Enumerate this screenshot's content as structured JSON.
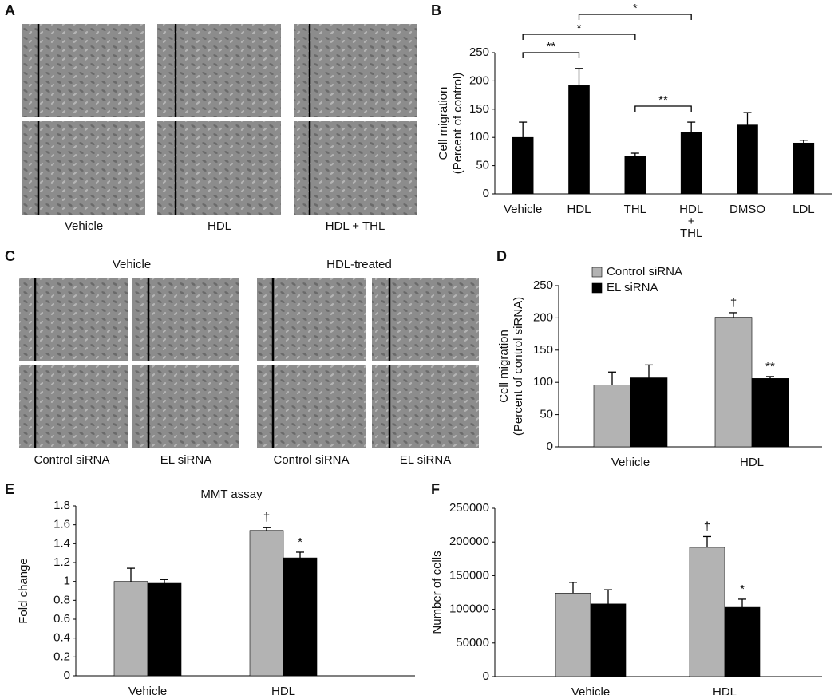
{
  "panels": {
    "letters": [
      "A",
      "B",
      "C",
      "D",
      "E",
      "F"
    ],
    "a": {
      "captions": [
        "Vehicle",
        "HDL",
        "HDL + THL"
      ]
    },
    "c": {
      "groups": [
        "Vehicle",
        "HDL-treated"
      ],
      "captions": [
        "Control siRNA",
        "EL siRNA",
        "Control siRNA",
        "EL siRNA"
      ]
    }
  },
  "chart_data": [
    {
      "type": "bar",
      "ylabel": [
        "Cell migration",
        "(Percent of control)"
      ],
      "categories": [
        "Vehicle",
        "HDL",
        "THL",
        "HDL + THL",
        "DMSO",
        "LDL"
      ],
      "values": [
        100,
        192,
        67,
        109,
        122,
        90
      ],
      "errors": [
        27,
        30,
        5,
        18,
        22,
        5
      ],
      "color": "#000000",
      "ylim": [
        0,
        250
      ],
      "yticks": [
        0,
        50,
        100,
        150,
        200,
        250
      ],
      "significance": [
        {
          "between": [
            "Vehicle",
            "HDL"
          ],
          "label": "**"
        },
        {
          "between": [
            "Vehicle",
            "THL"
          ],
          "label": "*"
        },
        {
          "between": [
            "HDL",
            "HDL + THL"
          ],
          "label": "*"
        },
        {
          "between": [
            "THL",
            "HDL + THL"
          ],
          "label": "**"
        }
      ]
    },
    {
      "type": "bar",
      "ylabel": [
        "Cell migration",
        "(Percent of control siRNA)"
      ],
      "categories": [
        "Vehicle",
        "HDL"
      ],
      "series": [
        {
          "name": "Control siRNA",
          "color": "#b3b3b3",
          "values": [
            96,
            201
          ],
          "errors": [
            20,
            7
          ],
          "annotations": [
            null,
            "†"
          ]
        },
        {
          "name": "EL siRNA",
          "color": "#000000",
          "values": [
            107,
            106
          ],
          "errors": [
            20,
            3
          ],
          "annotations": [
            null,
            "**"
          ]
        }
      ],
      "ylim": [
        0,
        250
      ],
      "yticks": [
        0,
        50,
        100,
        150,
        200,
        250
      ],
      "legend": "top-left"
    },
    {
      "type": "bar",
      "title": "MMT assay",
      "ylabel": [
        "Fold change"
      ],
      "categories": [
        "Vehicle",
        "HDL"
      ],
      "series": [
        {
          "color": "#b3b3b3",
          "values": [
            1.0,
            1.54
          ],
          "errors": [
            0.14,
            0.03
          ],
          "annotations": [
            null,
            "†"
          ]
        },
        {
          "color": "#000000",
          "values": [
            0.98,
            1.25
          ],
          "errors": [
            0.04,
            0.06
          ],
          "annotations": [
            null,
            "*"
          ]
        }
      ],
      "ylim": [
        0,
        1.8
      ],
      "yticks": [
        0,
        0.2,
        0.4,
        0.6,
        0.8,
        1,
        1.2,
        1.4,
        1.6,
        1.8
      ]
    },
    {
      "type": "bar",
      "ylabel": [
        "Number of cells"
      ],
      "categories": [
        "Vehicle",
        "HDL"
      ],
      "series": [
        {
          "color": "#b3b3b3",
          "values": [
            124000,
            192000
          ],
          "errors": [
            16000,
            16000
          ],
          "annotations": [
            null,
            "†"
          ]
        },
        {
          "color": "#000000",
          "values": [
            108000,
            103000
          ],
          "errors": [
            21000,
            12000
          ],
          "annotations": [
            null,
            "*"
          ]
        }
      ],
      "ylim": [
        0,
        250000
      ],
      "yticks": [
        0,
        50000,
        100000,
        150000,
        200000,
        250000
      ]
    }
  ]
}
